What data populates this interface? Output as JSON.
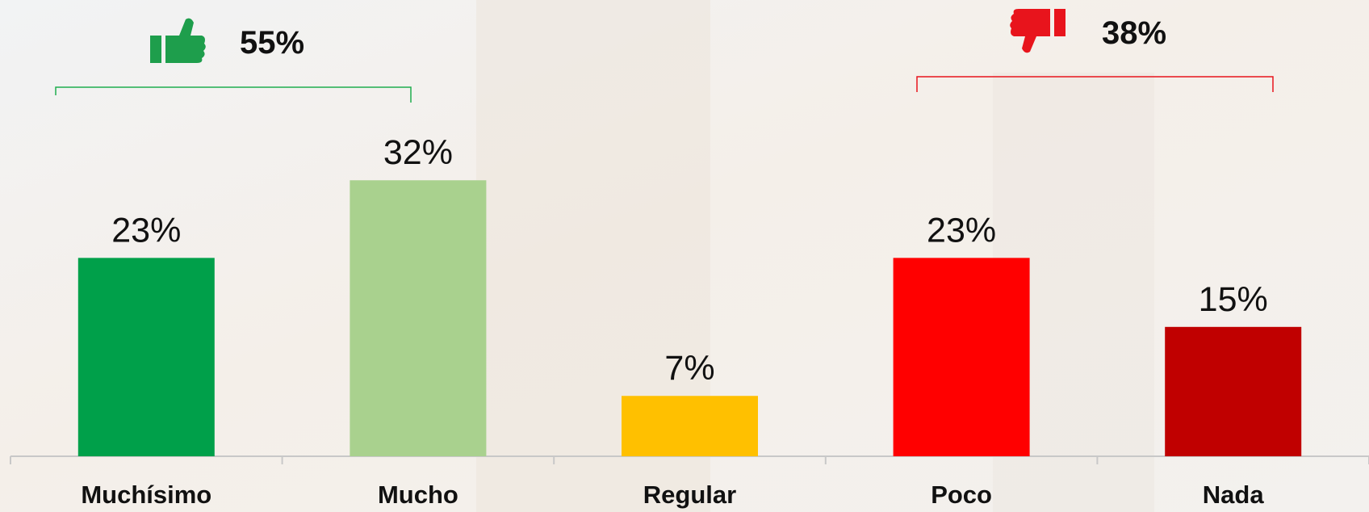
{
  "chart_data": {
    "type": "bar",
    "categories": [
      "Muchísimo",
      "Mucho",
      "Regular",
      "Poco",
      "Nada"
    ],
    "values": [
      23,
      32,
      7,
      23,
      15
    ],
    "value_labels": [
      "23%",
      "32%",
      "7%",
      "23%",
      "15%"
    ],
    "colors": [
      "#00a04a",
      "#a9d18e",
      "#ffc000",
      "#ff0000",
      "#c00000"
    ],
    "annotations": [
      "55%",
      "38%"
    ]
  }
}
